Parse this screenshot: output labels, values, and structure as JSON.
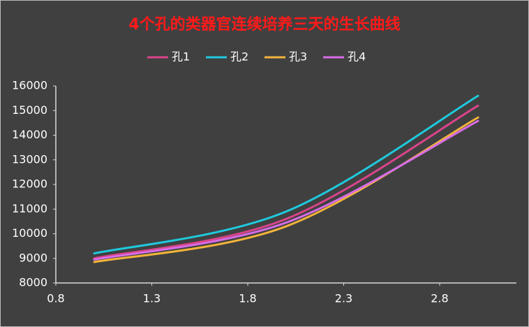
{
  "chart_data": {
    "type": "line",
    "title": "4个孔的类器官连续培养三天的生长曲线",
    "x": [
      1,
      2,
      3
    ],
    "series": [
      {
        "name": "孔1",
        "color": "#d9448a",
        "values": [
          9000,
          10600,
          15200
        ]
      },
      {
        "name": "孔2",
        "color": "#1fc9dd",
        "values": [
          9200,
          10900,
          15600
        ]
      },
      {
        "name": "孔3",
        "color": "#f2b43a",
        "values": [
          8850,
          10300,
          14720
        ]
      },
      {
        "name": "孔4",
        "color": "#d76de6",
        "values": [
          8950,
          10450,
          14580
        ]
      }
    ],
    "xlim": [
      0.8,
      3.2
    ],
    "xticks": [
      0.8,
      1.3,
      1.8,
      2.3,
      2.8
    ],
    "ylim": [
      8000,
      16000
    ],
    "yticks": [
      8000,
      9000,
      10000,
      11000,
      12000,
      13000,
      14000,
      15000,
      16000
    ],
    "smooth": true,
    "grid": false
  }
}
